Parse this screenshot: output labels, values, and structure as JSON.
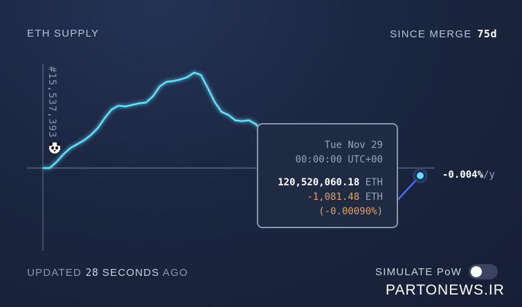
{
  "header": {
    "title": "ETH SUPPLY",
    "since_label": "SINCE MERGE",
    "since_value": "75d"
  },
  "chart": {
    "merge_block_label": "#15,537,393",
    "merge_marker_icon": "panda-icon",
    "rate_value": "-0.004%",
    "rate_unit": "/y",
    "line_color": "#5ee2ff",
    "projection_color": "#4a6cf0",
    "tooltip": {
      "date": "Tue Nov 29",
      "time": "00:00:00 UTC+00",
      "supply_value": "120,520,060.18",
      "supply_unit": "ETH",
      "delta_value": "-1,081.48",
      "delta_unit": "ETH",
      "delta_percent": "(-0.00090%)",
      "delta_color": "#e3a062"
    }
  },
  "chart_data": {
    "type": "line",
    "title": "ETH SUPPLY",
    "series": [
      {
        "x": [
          0,
          1,
          2,
          3,
          4,
          5,
          6,
          7,
          8,
          9,
          10,
          11,
          12,
          13,
          14,
          15,
          16,
          17,
          18,
          19,
          20,
          21,
          22,
          23,
          24,
          25,
          26,
          27,
          28,
          29,
          30,
          31,
          32,
          33,
          34,
          35,
          36,
          37,
          38,
          39,
          40,
          41,
          42,
          43,
          44,
          45,
          46,
          47,
          48,
          49,
          50,
          51
        ],
        "values": [
          0,
          0,
          80,
          180,
          260,
          310,
          360,
          430,
          520,
          650,
          760,
          810,
          800,
          820,
          840,
          850,
          930,
          1060,
          1120,
          1130,
          1150,
          1180,
          1240,
          1210,
          1040,
          860,
          730,
          690,
          620,
          610,
          620,
          570,
          470,
          330,
          180,
          160,
          180,
          160,
          130,
          115,
          100,
          85,
          60,
          45,
          30,
          20,
          10,
          5,
          0,
          -5,
          -10,
          -12
        ]
      }
    ],
    "grid": false,
    "legend": "none"
  },
  "footer": {
    "updated_prefix": "UPDATED",
    "updated_number": "28",
    "updated_seconds": "SECONDS",
    "updated_suffix": "AGO",
    "simulate_label": "SIMULATE PoW",
    "simulate_on": false
  },
  "watermark": "PARTONEWS.IR"
}
